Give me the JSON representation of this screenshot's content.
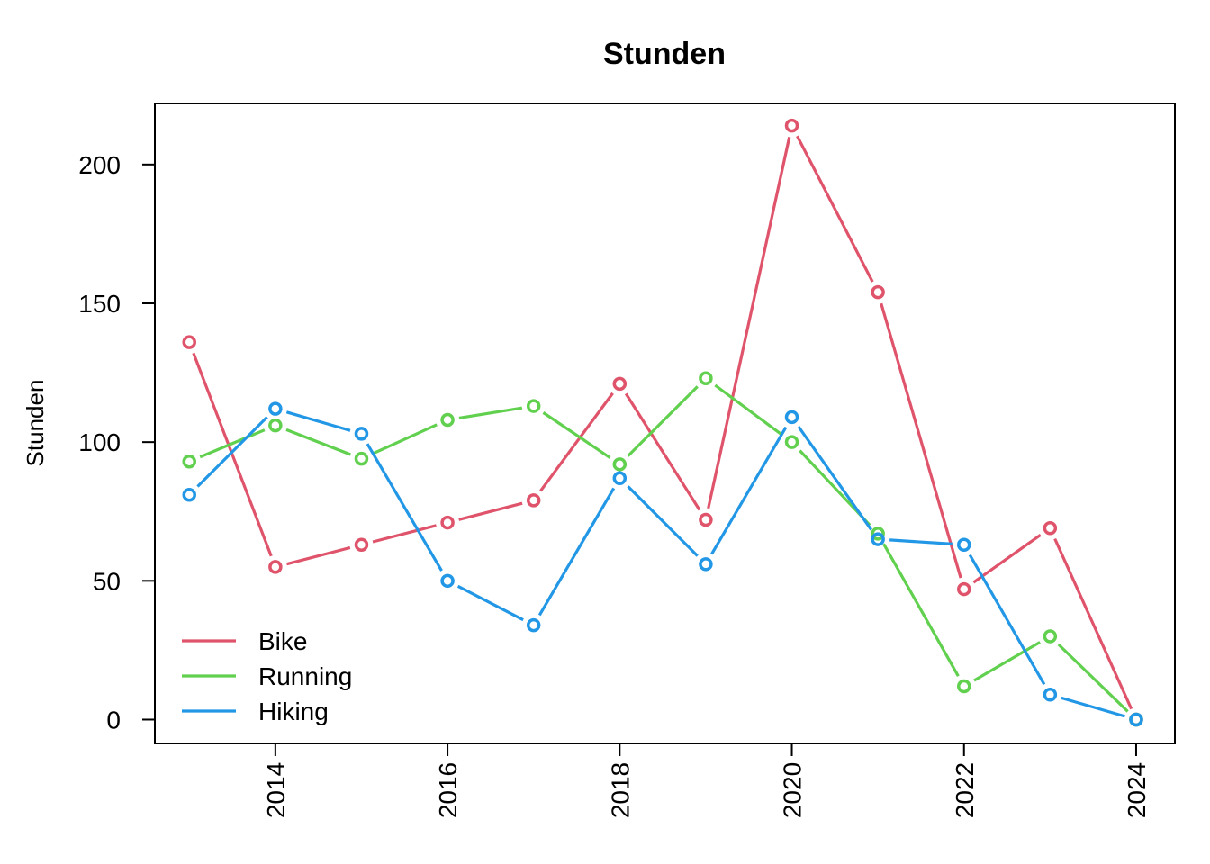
{
  "chart_data": {
    "type": "line",
    "title": "Stunden",
    "xlabel": "",
    "ylabel": "Stunden",
    "x": [
      2013,
      2014,
      2015,
      2016,
      2017,
      2018,
      2019,
      2020,
      2021,
      2022,
      2023,
      2024
    ],
    "xlim": [
      2012.6,
      2024.45
    ],
    "ylim": [
      -8.6,
      222
    ],
    "xticks": [
      2014,
      2016,
      2018,
      2020,
      2022,
      2024
    ],
    "yticks": [
      0,
      50,
      100,
      150,
      200
    ],
    "grid": false,
    "legend_position": "bottom-left",
    "series": [
      {
        "name": "Bike",
        "color": "#DF536B",
        "values": [
          136,
          55,
          63,
          71,
          79,
          121,
          72,
          214,
          154,
          47,
          69,
          0
        ]
      },
      {
        "name": "Running",
        "color": "#61D04F",
        "values": [
          93,
          106,
          94,
          108,
          113,
          92,
          123,
          100,
          67,
          12,
          30,
          0
        ]
      },
      {
        "name": "Hiking",
        "color": "#2297E6",
        "values": [
          81,
          112,
          103,
          50,
          34,
          87,
          56,
          109,
          65,
          63,
          9,
          0
        ]
      }
    ]
  }
}
